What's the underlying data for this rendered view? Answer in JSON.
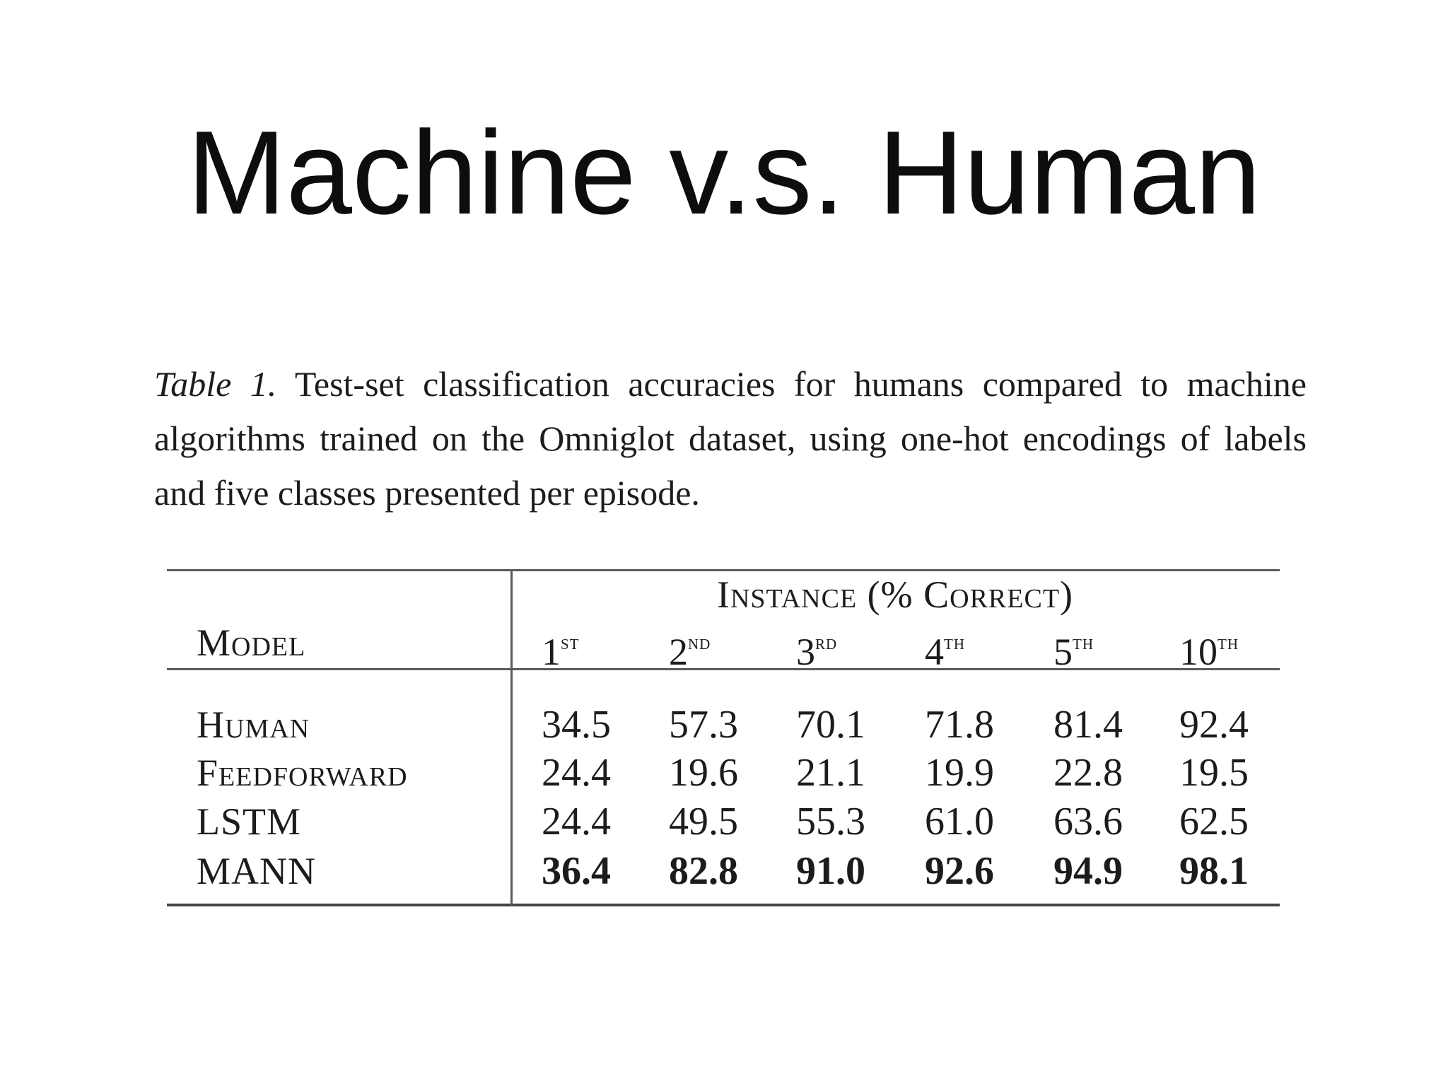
{
  "slide": {
    "title": "Machine v.s. Human"
  },
  "caption": {
    "label": "Table 1.",
    "text": "Test-set classification accuracies for humans compared to machine algorithms trained on the Omniglot dataset, using one-hot encodings of labels and five classes presented per episode."
  },
  "table": {
    "group_header": "Instance (% Correct)",
    "model_header": "Model",
    "columns": [
      {
        "num": "1",
        "suffix": "st"
      },
      {
        "num": "2",
        "suffix": "nd"
      },
      {
        "num": "3",
        "suffix": "rd"
      },
      {
        "num": "4",
        "suffix": "th"
      },
      {
        "num": "5",
        "suffix": "th"
      },
      {
        "num": "10",
        "suffix": "th"
      }
    ],
    "rows": [
      {
        "model": "Human",
        "values": [
          "34.5",
          "57.3",
          "70.1",
          "71.8",
          "81.4",
          "92.4"
        ],
        "bold": false
      },
      {
        "model": "Feedforward",
        "values": [
          "24.4",
          "19.6",
          "21.1",
          "19.9",
          "22.8",
          "19.5"
        ],
        "bold": false
      },
      {
        "model": "LSTM",
        "values": [
          "24.4",
          "49.5",
          "55.3",
          "61.0",
          "63.6",
          "62.5"
        ],
        "bold": false
      },
      {
        "model": "MANN",
        "values": [
          "36.4",
          "82.8",
          "91.0",
          "92.6",
          "94.9",
          "98.1"
        ],
        "bold": true
      }
    ]
  }
}
